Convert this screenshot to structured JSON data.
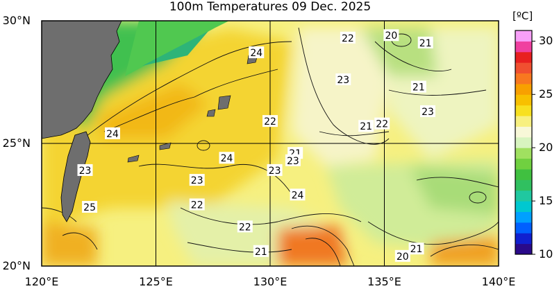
{
  "title": "100m Temperatures  09 Dec. 2025",
  "map": {
    "lon_range": [
      120,
      140
    ],
    "lat_range": [
      20,
      30
    ],
    "lon_ticks": [
      {
        "value": 120,
        "label": "120°E"
      },
      {
        "value": 125,
        "label": "125°E"
      },
      {
        "value": 130,
        "label": "130°E"
      },
      {
        "value": 135,
        "label": "135°E"
      },
      {
        "value": 140,
        "label": "140°E"
      }
    ],
    "lat_ticks": [
      {
        "value": 30,
        "label": "30°N"
      },
      {
        "value": 25,
        "label": "25°N"
      },
      {
        "value": 20,
        "label": "20°N"
      }
    ],
    "grid": true,
    "land_color": "#6e6e6e",
    "contour_labels": [
      {
        "text": "24",
        "lon": 129.4,
        "lat": 28.7
      },
      {
        "text": "22",
        "lon": 133.4,
        "lat": 29.3
      },
      {
        "text": "20",
        "lon": 135.3,
        "lat": 29.4
      },
      {
        "text": "21",
        "lon": 136.8,
        "lat": 29.1
      },
      {
        "text": "23",
        "lon": 133.2,
        "lat": 27.6
      },
      {
        "text": "21",
        "lon": 136.5,
        "lat": 27.3
      },
      {
        "text": "23",
        "lon": 136.9,
        "lat": 26.3
      },
      {
        "text": "22",
        "lon": 130.0,
        "lat": 25.9
      },
      {
        "text": "21",
        "lon": 134.2,
        "lat": 25.7
      },
      {
        "text": "22",
        "lon": 134.9,
        "lat": 25.8
      },
      {
        "text": "24",
        "lon": 123.1,
        "lat": 25.4
      },
      {
        "text": "21",
        "lon": 131.1,
        "lat": 24.6
      },
      {
        "text": "24",
        "lon": 128.1,
        "lat": 24.4
      },
      {
        "text": "23",
        "lon": 131.0,
        "lat": 24.3
      },
      {
        "text": "23",
        "lon": 121.9,
        "lat": 23.9
      },
      {
        "text": "23",
        "lon": 130.2,
        "lat": 23.9
      },
      {
        "text": "23",
        "lon": 126.8,
        "lat": 23.5
      },
      {
        "text": "24",
        "lon": 131.2,
        "lat": 22.9
      },
      {
        "text": "25",
        "lon": 122.1,
        "lat": 22.4
      },
      {
        "text": "22",
        "lon": 126.8,
        "lat": 22.5
      },
      {
        "text": "22",
        "lon": 128.9,
        "lat": 21.6
      },
      {
        "text": "21",
        "lon": 129.6,
        "lat": 20.6
      },
      {
        "text": "21",
        "lon": 136.4,
        "lat": 20.7
      },
      {
        "text": "20",
        "lon": 135.8,
        "lat": 20.4
      }
    ]
  },
  "colorbar": {
    "title": "[ºC]",
    "range": [
      10,
      31
    ],
    "ticks": [
      {
        "value": 30,
        "label": "30"
      },
      {
        "value": 25,
        "label": "25"
      },
      {
        "value": 20,
        "label": "20"
      },
      {
        "value": 15,
        "label": "15"
      },
      {
        "value": 10,
        "label": "10"
      }
    ],
    "colors": [
      "#2a0a8a",
      "#1020d0",
      "#0060ff",
      "#00a0ff",
      "#00c8d0",
      "#20c8a0",
      "#30c060",
      "#40c040",
      "#70d040",
      "#a0e060",
      "#d8f4c0",
      "#f8f8d8",
      "#f8f080",
      "#f8e020",
      "#f8c000",
      "#f8a000",
      "#f87820",
      "#f05030",
      "#e82020",
      "#f040a0",
      "#f8a0f8"
    ]
  }
}
